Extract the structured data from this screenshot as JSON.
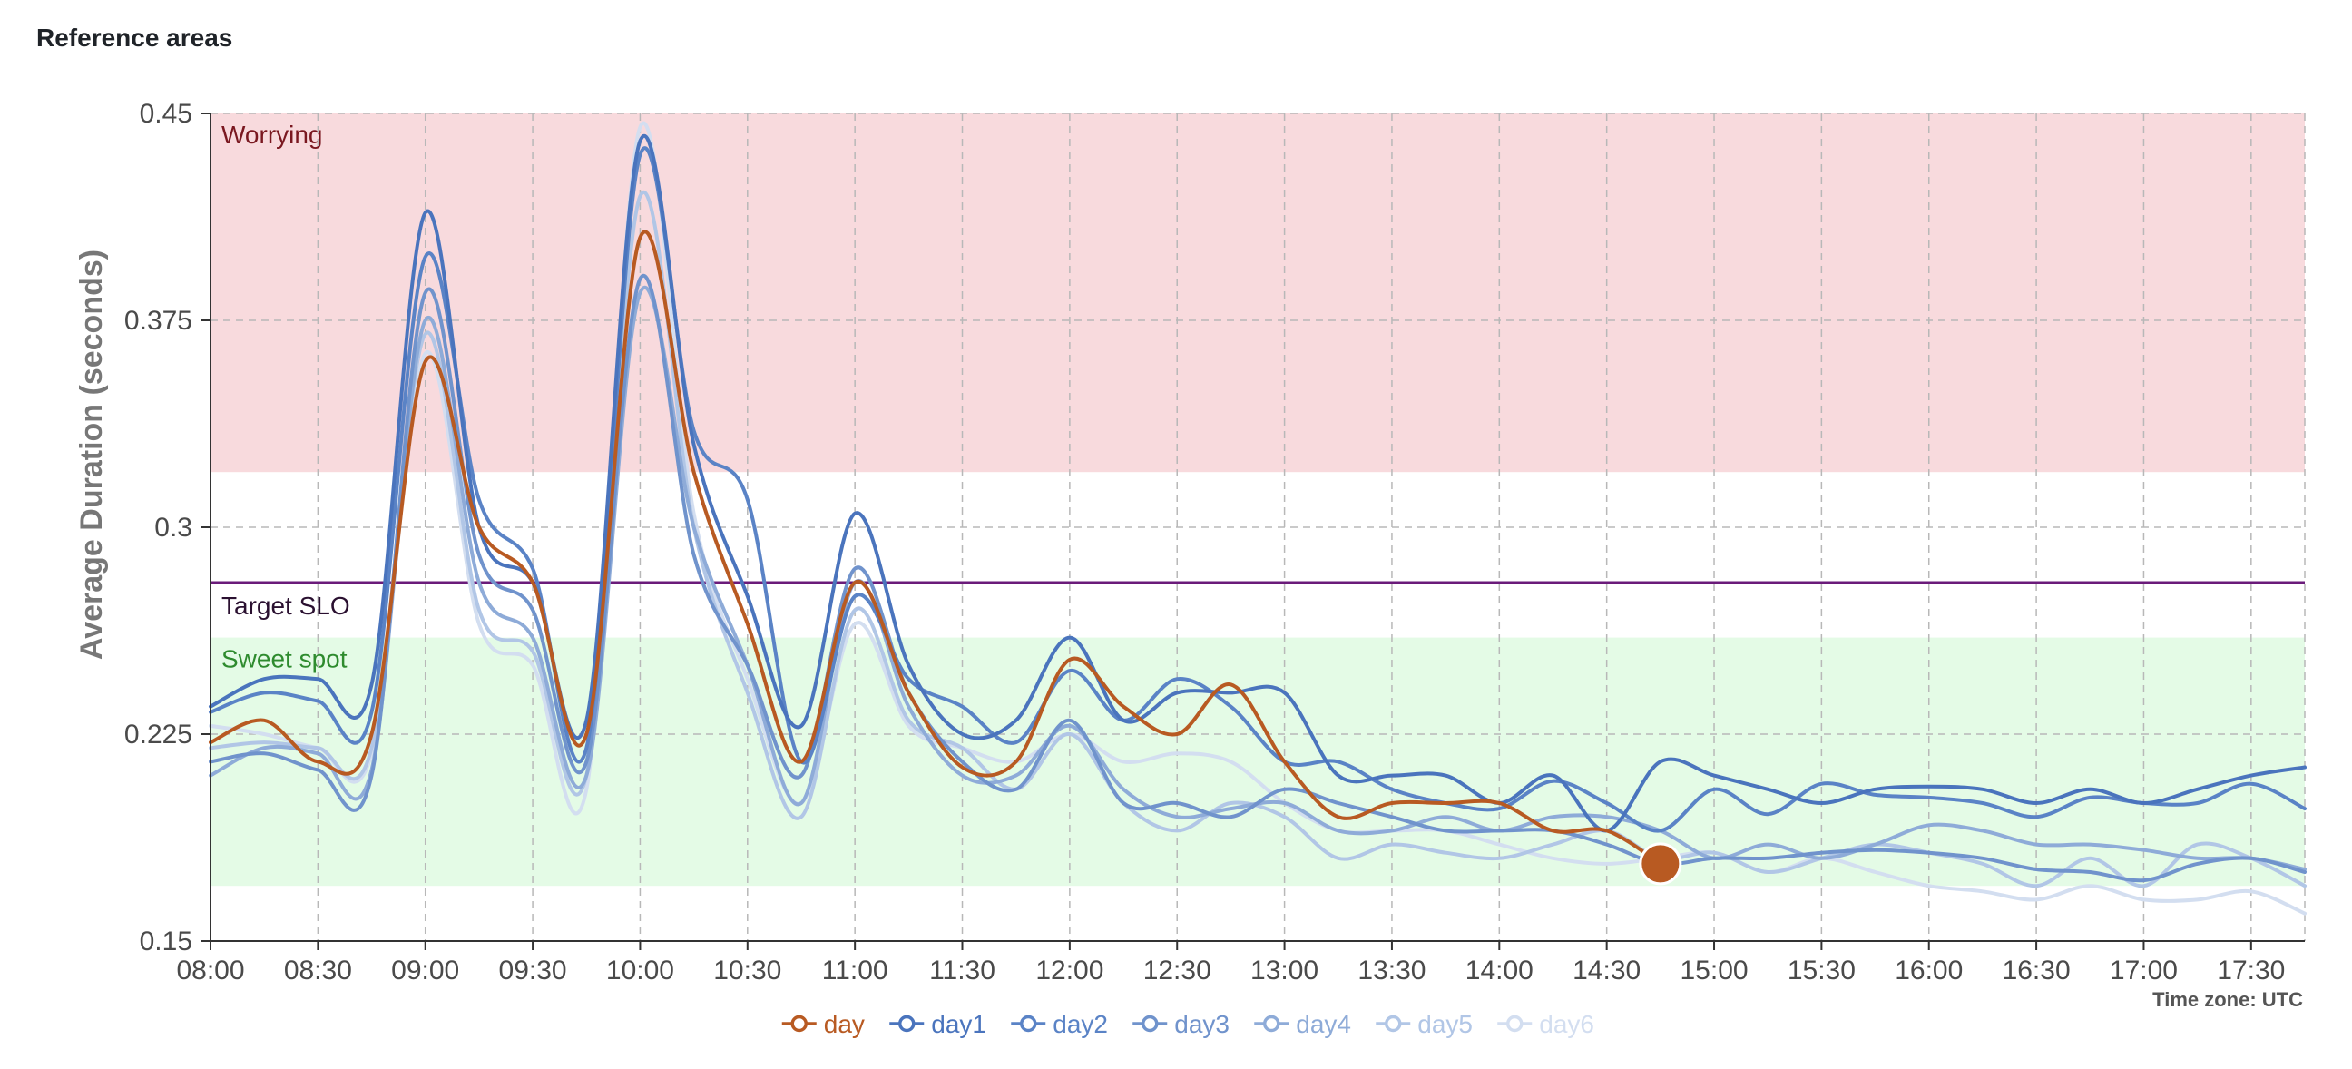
{
  "panel": {
    "title": "Reference areas"
  },
  "chart_data": {
    "type": "line",
    "ylabel": "Average Duration (seconds)",
    "xlabel": "",
    "ylim": [
      0.15,
      0.45
    ],
    "yticks": [
      0.15,
      0.225,
      0.3,
      0.375,
      0.45
    ],
    "ytick_labels": [
      "0.15",
      "0.225",
      "0.3",
      "0.375",
      "0.45"
    ],
    "xlim": [
      "08:00",
      "17:45"
    ],
    "xticks": [
      "08:00",
      "08:30",
      "09:00",
      "09:30",
      "10:00",
      "10:30",
      "11:00",
      "11:30",
      "12:00",
      "12:30",
      "13:00",
      "13:30",
      "14:00",
      "14:30",
      "15:00",
      "15:30",
      "16:00",
      "16:30",
      "17:00",
      "17:30"
    ],
    "grid": true,
    "legend_position": "bottom-center",
    "timezone_label": "Time zone: UTC",
    "reference_areas": [
      {
        "label": "Worrying",
        "y_from": 0.32,
        "y_to": 0.45,
        "fill": "#f8dadd",
        "text_color": "#7a1820"
      },
      {
        "label": "Sweet spot",
        "y_from": 0.17,
        "y_to": 0.26,
        "fill": "#e4fbe6",
        "text_color": "#2e8b2e"
      }
    ],
    "reference_lines": [
      {
        "label": "Target SLO",
        "y": 0.28,
        "color": "#6a1b7a",
        "text_color": "#2a1030"
      }
    ],
    "highlight_point": {
      "series": "day",
      "x": "14:45",
      "y": 0.178
    },
    "x": [
      "08:00",
      "08:15",
      "08:30",
      "08:45",
      "09:00",
      "09:15",
      "09:30",
      "09:45",
      "10:00",
      "10:15",
      "10:30",
      "10:45",
      "11:00",
      "11:15",
      "11:30",
      "11:45",
      "12:00",
      "12:15",
      "12:30",
      "12:45",
      "13:00",
      "13:15",
      "13:30",
      "13:45",
      "14:00",
      "14:15",
      "14:30",
      "14:45",
      "15:00",
      "15:15",
      "15:30",
      "15:45",
      "16:00",
      "16:15",
      "16:30",
      "16:45",
      "17:00",
      "17:15",
      "17:30",
      "17:45"
    ],
    "series": [
      {
        "name": "day",
        "color": "#b85a22",
        "values": [
          0.222,
          0.23,
          0.215,
          0.225,
          0.36,
          0.3,
          0.28,
          0.225,
          0.405,
          0.32,
          0.265,
          0.215,
          0.28,
          0.24,
          0.213,
          0.215,
          0.252,
          0.235,
          0.225,
          0.243,
          0.215,
          0.195,
          0.2,
          0.2,
          0.2,
          0.19,
          0.19,
          0.178,
          null,
          null,
          null,
          null,
          null,
          null,
          null,
          null,
          null,
          null,
          null,
          null
        ]
      },
      {
        "name": "day1",
        "color": "#4a74bd",
        "values": [
          0.235,
          0.245,
          0.245,
          0.243,
          0.414,
          0.3,
          0.28,
          0.23,
          0.44,
          0.33,
          0.275,
          0.228,
          0.305,
          0.25,
          0.225,
          0.23,
          0.26,
          0.23,
          0.24,
          0.24,
          0.24,
          0.21,
          0.21,
          0.21,
          0.2,
          0.21,
          0.19,
          0.215,
          0.21,
          0.205,
          0.2,
          0.205,
          0.206,
          0.205,
          0.2,
          0.205,
          0.2,
          0.205,
          0.21,
          0.213
        ]
      },
      {
        "name": "day2",
        "color": "#5a83c6",
        "values": [
          0.233,
          0.24,
          0.237,
          0.233,
          0.398,
          0.31,
          0.285,
          0.22,
          0.435,
          0.335,
          0.31,
          0.215,
          0.275,
          0.245,
          0.235,
          0.222,
          0.248,
          0.23,
          0.245,
          0.235,
          0.215,
          0.215,
          0.205,
          0.2,
          0.198,
          0.208,
          0.2,
          0.19,
          0.205,
          0.196,
          0.207,
          0.203,
          0.202,
          0.2,
          0.195,
          0.202,
          0.2,
          0.2,
          0.207,
          0.198
        ]
      },
      {
        "name": "day3",
        "color": "#7093cc",
        "values": [
          0.215,
          0.218,
          0.212,
          0.21,
          0.385,
          0.29,
          0.27,
          0.215,
          0.39,
          0.29,
          0.25,
          0.21,
          0.285,
          0.24,
          0.215,
          0.205,
          0.23,
          0.2,
          0.2,
          0.195,
          0.205,
          0.2,
          0.195,
          0.19,
          0.19,
          0.19,
          0.185,
          0.178,
          0.18,
          0.18,
          0.182,
          0.183,
          0.182,
          0.18,
          0.176,
          0.175,
          0.172,
          0.178,
          0.18,
          0.175
        ]
      },
      {
        "name": "day4",
        "color": "#8eabd8",
        "values": [
          0.21,
          0.22,
          0.218,
          0.212,
          0.375,
          0.28,
          0.26,
          0.21,
          0.385,
          0.3,
          0.25,
          0.2,
          0.28,
          0.235,
          0.21,
          0.21,
          0.228,
          0.205,
          0.195,
          0.198,
          0.2,
          0.19,
          0.19,
          0.195,
          0.19,
          0.195,
          0.195,
          0.19,
          0.18,
          0.185,
          0.18,
          0.185,
          0.192,
          0.19,
          0.185,
          0.185,
          0.183,
          0.18,
          0.18,
          0.176
        ]
      },
      {
        "name": "day5",
        "color": "#b1c6e6",
        "values": [
          0.22,
          0.222,
          0.22,
          0.22,
          0.37,
          0.27,
          0.255,
          0.21,
          0.42,
          0.3,
          0.24,
          0.195,
          0.27,
          0.23,
          0.22,
          0.205,
          0.225,
          0.2,
          0.19,
          0.2,
          0.195,
          0.18,
          0.185,
          0.182,
          0.18,
          0.185,
          0.19,
          0.18,
          0.182,
          0.175,
          0.18,
          0.185,
          0.182,
          0.178,
          0.17,
          0.18,
          0.17,
          0.185,
          0.18,
          0.17
        ]
      },
      {
        "name": "day6",
        "color": "#d3def0",
        "values": [
          0.228,
          0.225,
          0.22,
          0.218,
          0.363,
          0.265,
          0.25,
          0.205,
          0.445,
          0.305,
          0.245,
          0.2,
          0.265,
          0.228,
          0.22,
          0.215,
          0.225,
          0.215,
          0.218,
          0.215,
          0.2,
          0.19,
          0.19,
          0.19,
          0.185,
          0.18,
          0.178,
          0.18,
          0.182,
          0.175,
          0.18,
          0.175,
          0.17,
          0.168,
          0.165,
          0.17,
          0.165,
          0.165,
          0.168,
          0.16
        ]
      }
    ]
  }
}
